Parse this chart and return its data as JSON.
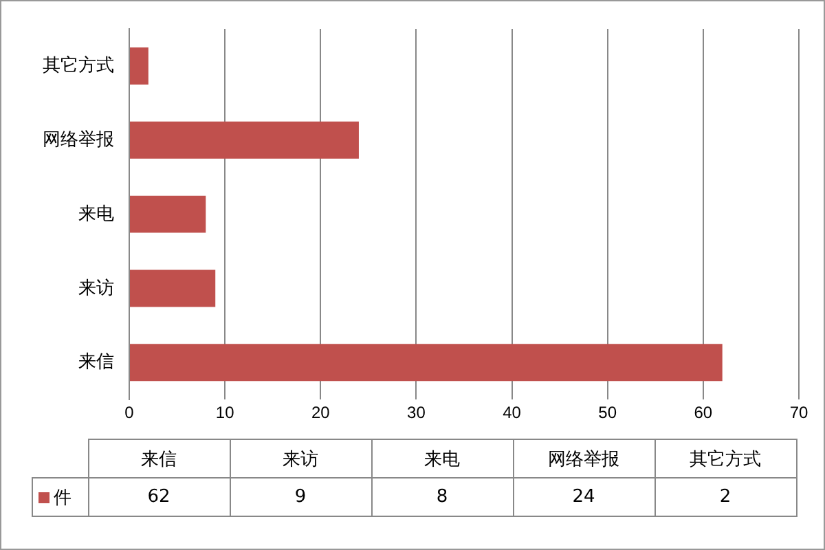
{
  "chart_data": [
    {
      "type": "bar",
      "orientation": "horizontal",
      "categories": [
        "其它方式",
        "网络举报",
        "来电",
        "来访",
        "来信"
      ],
      "series": [
        {
          "color": "#c0504d",
          "values": [
            2,
            24,
            8,
            9,
            62
          ]
        }
      ],
      "xlim": [
        0,
        70
      ],
      "xticks": [
        0,
        10,
        20,
        30,
        40,
        50,
        60,
        70
      ],
      "grid": "x"
    },
    {
      "type": "other",
      "categories": [
        "来信",
        "来访",
        "来电",
        "网络举报",
        "其它方式"
      ],
      "series": [
        {
          "name": "件",
          "color": "#c0504d",
          "values": [
            62,
            9,
            8,
            24,
            2
          ]
        }
      ],
      "legend": "left",
      "data_labels": true
    }
  ]
}
